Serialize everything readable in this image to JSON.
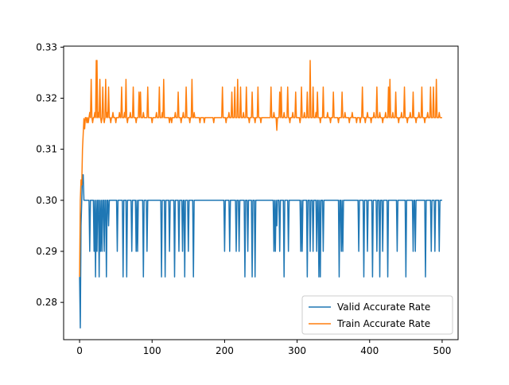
{
  "chart_data": {
    "type": "line",
    "title": "",
    "xlabel": "",
    "ylabel": "",
    "xlim": [
      -22,
      522
    ],
    "ylim": [
      0.2727,
      0.3302
    ],
    "x_ticks": [
      0,
      100,
      200,
      300,
      400,
      500
    ],
    "x_tick_labels": [
      "0",
      "100",
      "200",
      "300",
      "400",
      "500"
    ],
    "y_ticks": [
      0.28,
      0.29,
      0.3,
      0.31,
      0.32,
      0.33
    ],
    "y_tick_labels": [
      "0.28",
      "0.29",
      "0.30",
      "0.31",
      "0.32",
      "0.33"
    ],
    "grid": false,
    "legend_position": "lower-right",
    "series": [
      {
        "name": "Valid Accurate Rate",
        "color": "#1f77b4",
        "base": 0.3,
        "start": [
          [
            0,
            0.285
          ],
          [
            1,
            0.275
          ],
          [
            2,
            0.295
          ],
          [
            3,
            0.3
          ],
          [
            4,
            0.305
          ],
          [
            5,
            0.305
          ],
          [
            6,
            0.3
          ]
        ],
        "dips": [
          [
            14,
            0.29
          ],
          [
            18,
            0.3
          ],
          [
            20,
            0.29
          ],
          [
            22,
            0.285
          ],
          [
            24,
            0.29
          ],
          [
            27,
            0.285
          ],
          [
            29,
            0.29
          ],
          [
            31,
            0.29
          ],
          [
            34,
            0.29
          ],
          [
            37,
            0.285
          ],
          [
            40,
            0.295
          ],
          [
            52,
            0.29
          ],
          [
            60,
            0.285
          ],
          [
            65,
            0.285
          ],
          [
            72,
            0.29
          ],
          [
            78,
            0.29
          ],
          [
            80,
            0.29
          ],
          [
            88,
            0.285
          ],
          [
            93,
            0.29
          ],
          [
            113,
            0.285
          ],
          [
            118,
            0.285
          ],
          [
            124,
            0.29
          ],
          [
            131,
            0.285
          ],
          [
            137,
            0.29
          ],
          [
            142,
            0.29
          ],
          [
            145,
            0.285
          ],
          [
            150,
            0.29
          ],
          [
            157,
            0.285
          ],
          [
            200,
            0.29
          ],
          [
            207,
            0.29
          ],
          [
            216,
            0.29
          ],
          [
            220,
            0.29
          ],
          [
            228,
            0.285
          ],
          [
            232,
            0.29
          ],
          [
            238,
            0.285
          ],
          [
            242,
            0.285
          ],
          [
            268,
            0.29
          ],
          [
            270,
            0.29
          ],
          [
            272,
            0.295
          ],
          [
            276,
            0.29
          ],
          [
            282,
            0.285
          ],
          [
            288,
            0.29
          ],
          [
            305,
            0.29
          ],
          [
            307,
            0.29
          ],
          [
            314,
            0.285
          ],
          [
            318,
            0.29
          ],
          [
            322,
            0.29
          ],
          [
            327,
            0.29
          ],
          [
            330,
            0.285
          ],
          [
            332,
            0.285
          ],
          [
            336,
            0.29
          ],
          [
            358,
            0.285
          ],
          [
            361,
            0.29
          ],
          [
            363,
            0.29
          ],
          [
            385,
            0.29
          ],
          [
            392,
            0.285
          ],
          [
            397,
            0.29
          ],
          [
            404,
            0.285
          ],
          [
            410,
            0.29
          ],
          [
            414,
            0.285
          ],
          [
            418,
            0.29
          ],
          [
            425,
            0.285
          ],
          [
            438,
            0.29
          ],
          [
            450,
            0.285
          ],
          [
            460,
            0.29
          ],
          [
            463,
            0.29
          ],
          [
            477,
            0.285
          ],
          [
            485,
            0.29
          ],
          [
            490,
            0.29
          ],
          [
            496,
            0.29
          ]
        ],
        "end_x": 500
      },
      {
        "name": "Train Accurate Rate",
        "color": "#ff7f0e",
        "base": 0.3162,
        "start": [
          [
            0,
            0.285
          ],
          [
            1,
            0.3
          ],
          [
            2,
            0.304
          ],
          [
            3,
            0.303
          ],
          [
            4,
            0.31
          ],
          [
            5,
            0.313
          ],
          [
            6,
            0.316
          ],
          [
            7,
            0.314
          ],
          [
            8,
            0.3162
          ]
        ],
        "dips": [
          [
            10,
            0.3152
          ],
          [
            12,
            0.3152
          ],
          [
            14,
            0.3172
          ],
          [
            16,
            0.3237
          ],
          [
            18,
            0.3152
          ],
          [
            21,
            0.3172
          ],
          [
            23,
            0.3274
          ],
          [
            24,
            0.3274
          ],
          [
            26,
            0.3172
          ],
          [
            28,
            0.3237
          ],
          [
            30,
            0.3152
          ],
          [
            32,
            0.3222
          ],
          [
            34,
            0.3152
          ],
          [
            36,
            0.3237
          ],
          [
            38,
            0.3172
          ],
          [
            40,
            0.3222
          ],
          [
            43,
            0.3152
          ],
          [
            46,
            0.3172
          ],
          [
            50,
            0.3152
          ],
          [
            55,
            0.3172
          ],
          [
            58,
            0.3222
          ],
          [
            62,
            0.3172
          ],
          [
            64,
            0.3237
          ],
          [
            66,
            0.3152
          ],
          [
            70,
            0.3172
          ],
          [
            74,
            0.3222
          ],
          [
            78,
            0.3152
          ],
          [
            82,
            0.3212
          ],
          [
            84,
            0.3212
          ],
          [
            88,
            0.3172
          ],
          [
            94,
            0.3222
          ],
          [
            100,
            0.3152
          ],
          [
            106,
            0.3172
          ],
          [
            110,
            0.3222
          ],
          [
            114,
            0.3172
          ],
          [
            116,
            0.3237
          ],
          [
            124,
            0.3152
          ],
          [
            127,
            0.3152
          ],
          [
            132,
            0.3172
          ],
          [
            136,
            0.3212
          ],
          [
            140,
            0.3152
          ],
          [
            143,
            0.3172
          ],
          [
            147,
            0.3222
          ],
          [
            152,
            0.3152
          ],
          [
            155,
            0.3237
          ],
          [
            158,
            0.3172
          ],
          [
            166,
            0.3152
          ],
          [
            172,
            0.3152
          ],
          [
            185,
            0.3152
          ],
          [
            197,
            0.3222
          ],
          [
            202,
            0.3152
          ],
          [
            206,
            0.3172
          ],
          [
            210,
            0.3212
          ],
          [
            214,
            0.3222
          ],
          [
            218,
            0.3237
          ],
          [
            222,
            0.3222
          ],
          [
            226,
            0.3172
          ],
          [
            230,
            0.3222
          ],
          [
            234,
            0.3152
          ],
          [
            238,
            0.3212
          ],
          [
            242,
            0.3152
          ],
          [
            246,
            0.3222
          ],
          [
            250,
            0.3152
          ],
          [
            264,
            0.3222
          ],
          [
            268,
            0.3172
          ],
          [
            272,
            0.3137
          ],
          [
            276,
            0.3212
          ],
          [
            278,
            0.3222
          ],
          [
            282,
            0.3172
          ],
          [
            287,
            0.3222
          ],
          [
            290,
            0.3152
          ],
          [
            294,
            0.3172
          ],
          [
            298,
            0.3212
          ],
          [
            304,
            0.3152
          ],
          [
            306,
            0.3222
          ],
          [
            310,
            0.3172
          ],
          [
            314,
            0.3212
          ],
          [
            318,
            0.3274
          ],
          [
            322,
            0.3222
          ],
          [
            326,
            0.3172
          ],
          [
            328,
            0.3212
          ],
          [
            332,
            0.3152
          ],
          [
            336,
            0.3222
          ],
          [
            342,
            0.3172
          ],
          [
            346,
            0.3152
          ],
          [
            350,
            0.3212
          ],
          [
            357,
            0.3152
          ],
          [
            362,
            0.3212
          ],
          [
            366,
            0.3172
          ],
          [
            372,
            0.3152
          ],
          [
            376,
            0.3172
          ],
          [
            382,
            0.3152
          ],
          [
            387,
            0.3152
          ],
          [
            390,
            0.3222
          ],
          [
            394,
            0.3152
          ],
          [
            397,
            0.3172
          ],
          [
            402,
            0.3152
          ],
          [
            406,
            0.3172
          ],
          [
            410,
            0.3222
          ],
          [
            414,
            0.3172
          ],
          [
            418,
            0.3152
          ],
          [
            422,
            0.3172
          ],
          [
            426,
            0.3222
          ],
          [
            428,
            0.3237
          ],
          [
            432,
            0.3172
          ],
          [
            436,
            0.3212
          ],
          [
            440,
            0.3152
          ],
          [
            444,
            0.3172
          ],
          [
            448,
            0.3222
          ],
          [
            452,
            0.3152
          ],
          [
            456,
            0.3172
          ],
          [
            460,
            0.3212
          ],
          [
            464,
            0.3152
          ],
          [
            468,
            0.3172
          ],
          [
            472,
            0.3222
          ],
          [
            476,
            0.3152
          ],
          [
            480,
            0.3172
          ],
          [
            484,
            0.3222
          ],
          [
            488,
            0.3222
          ],
          [
            492,
            0.3237
          ],
          [
            496,
            0.3172
          ]
        ],
        "end_x": 500
      }
    ]
  }
}
